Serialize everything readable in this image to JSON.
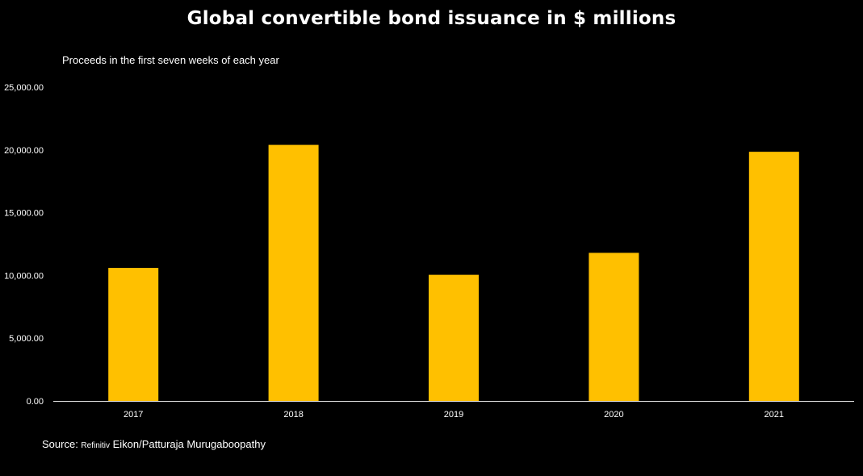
{
  "chart_data": {
    "type": "bar",
    "title": "Global convertible bond issuance in $ millions",
    "subtitle": "Proceeds in the first seven weeks of each year",
    "categories": [
      "2017",
      "2018",
      "2019",
      "2020",
      "2021"
    ],
    "values": [
      10600,
      20400,
      10050,
      11800,
      19850
    ],
    "ylim": [
      0,
      25000
    ],
    "yticks": [
      0,
      5000,
      10000,
      15000,
      20000,
      25000
    ],
    "ytick_labels": [
      "0.00",
      "5,000.00",
      "10,000.00",
      "15,000.00",
      "20,000.00",
      "25,000.00"
    ],
    "xlabel": "",
    "ylabel": "",
    "grid": false,
    "bar_color": "#FFC000"
  },
  "source": {
    "prefix": "Source: ",
    "provider": "Refinitiv",
    "rest": " Eikon/Patturaja Murugaboopathy"
  }
}
